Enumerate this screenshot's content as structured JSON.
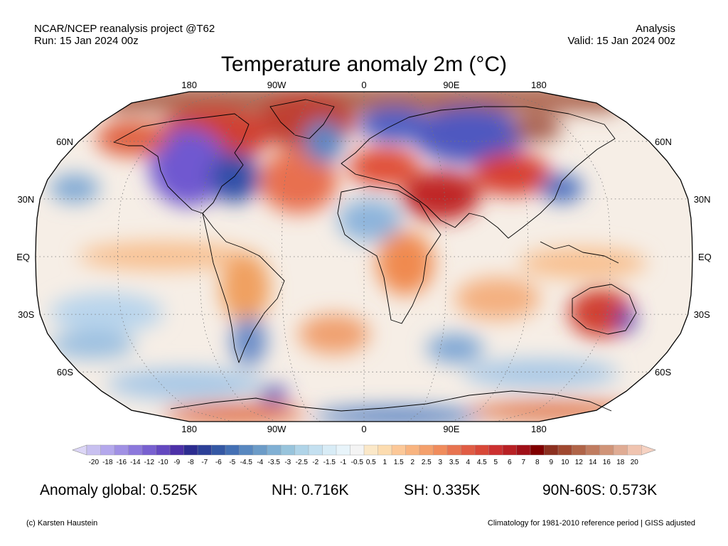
{
  "header": {
    "source": "NCAR/NCEP reanalysis project @T62",
    "run": "Run: 15 Jan 2024 00z",
    "mode": "Analysis",
    "valid": "Valid: 15 Jan 2024 00z"
  },
  "title": "Temperature anomaly 2m (°C)",
  "map": {
    "projection": "Robinson",
    "lon_labels_top": [
      "180",
      "90W",
      "0",
      "90E",
      "180"
    ],
    "lon_labels_bottom": [
      "180",
      "90W",
      "0",
      "90E",
      "180"
    ],
    "lat_labels_left": [
      "60N",
      "30N",
      "EQ",
      "30S",
      "60S"
    ],
    "lat_labels_right": [
      "60N",
      "30N",
      "EQ",
      "30S",
      "60S"
    ],
    "anomaly_regions": [
      {
        "region": "North America (interior)",
        "sign": "cold",
        "color": "#6a4fc8"
      },
      {
        "region": "Greenland / Arctic",
        "sign": "warm",
        "color": "#a05a48"
      },
      {
        "region": "Scandinavia / Siberia",
        "sign": "cold",
        "color": "#5a5ac8"
      },
      {
        "region": "Central Asia",
        "sign": "warm",
        "color": "#b02020"
      },
      {
        "region": "Australia",
        "sign": "warm",
        "color": "#d03030"
      },
      {
        "region": "Antarctica",
        "sign": "mixed",
        "color": "#e07040"
      }
    ]
  },
  "colorbar": {
    "labels": [
      "-20",
      "-18",
      "-16",
      "-14",
      "-12",
      "-10",
      "-9",
      "-8",
      "-7",
      "-6",
      "-5",
      "-4.5",
      "-4",
      "-3.5",
      "-3",
      "-2.5",
      "-2",
      "-1.5",
      "-1",
      "-0.5",
      "0.5",
      "1",
      "1.5",
      "2",
      "2.5",
      "3",
      "3.5",
      "4",
      "4.5",
      "5",
      "6",
      "7",
      "8",
      "9",
      "10",
      "12",
      "14",
      "16",
      "18",
      "20"
    ],
    "colors": [
      "#c8c0f0",
      "#b4a8ec",
      "#a090e4",
      "#8c78dc",
      "#7860d0",
      "#6448c0",
      "#4c30a8",
      "#2c2c90",
      "#2c4098",
      "#3458a4",
      "#4470b4",
      "#5888c0",
      "#6c9cc8",
      "#80b0d4",
      "#98c4dc",
      "#b0d4e8",
      "#c4e0f0",
      "#d8ecf6",
      "#e8f4fa",
      "#f4f4f4",
      "#fbe8c8",
      "#fcdcb0",
      "#fcc898",
      "#f8b480",
      "#f4a06c",
      "#f08c5c",
      "#e87450",
      "#e05c44",
      "#d84838",
      "#cc3030",
      "#b82024",
      "#a01018",
      "#800000",
      "#8c3020",
      "#a04830",
      "#b06448",
      "#c07c60",
      "#d09478",
      "#e0ac94",
      "#f0c4b0"
    ]
  },
  "stats": {
    "global": "Anomaly global: 0.525K",
    "nh": "NH: 0.716K",
    "sh": "SH: 0.335K",
    "arctic": "90N-60S: 0.573K"
  },
  "footer": {
    "credit": "(c) Karsten Haustein",
    "note": "Climatology for 1981-2010 reference period | GISS adjusted"
  }
}
